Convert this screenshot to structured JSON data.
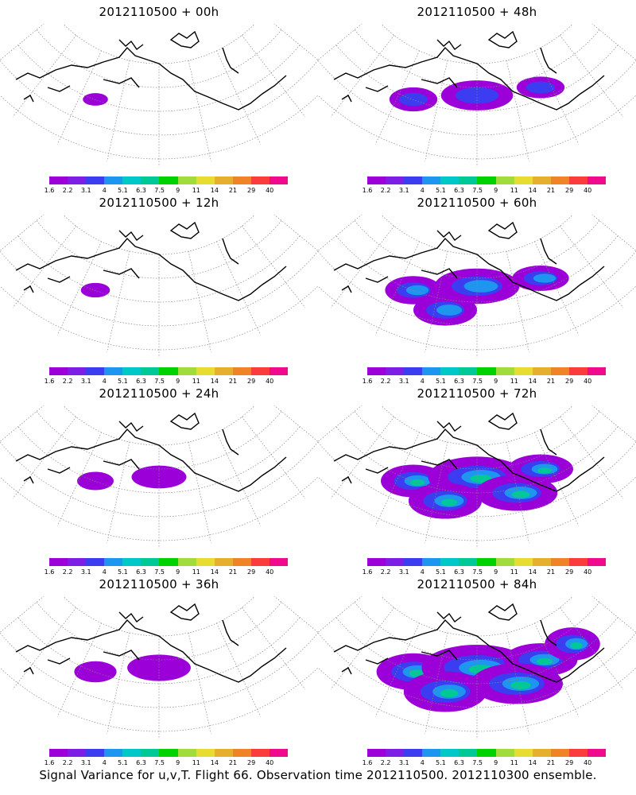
{
  "caption": "Signal Variance for u,v,T. Flight 66. Observation time 2012110500. 2012110300 ensemble.",
  "colorbar": {
    "colors": [
      "#9b00d8",
      "#7d1ee6",
      "#3c3cf0",
      "#1e96f0",
      "#00c8c8",
      "#00c896",
      "#00d200",
      "#a0dc3c",
      "#e6dc32",
      "#e6af2d",
      "#f08228",
      "#fa3c3c",
      "#f00a8c"
    ],
    "labels": [
      "1.6",
      "2.2",
      "3.1",
      "4",
      "5.1",
      "6.3",
      "7.5",
      "9",
      "11",
      "14",
      "21",
      "29",
      "40"
    ]
  },
  "panels": [
    {
      "title": "2012110500 + 00h",
      "fill_level": 0.05
    },
    {
      "title": "2012110500 + 48h",
      "fill_level": 0.45
    },
    {
      "title": "2012110500 + 12h",
      "fill_level": 0.12
    },
    {
      "title": "2012110500 + 60h",
      "fill_level": 0.6
    },
    {
      "title": "2012110500 + 24h",
      "fill_level": 0.25
    },
    {
      "title": "2012110500 + 72h",
      "fill_level": 0.75
    },
    {
      "title": "2012110500 + 36h",
      "fill_level": 0.35
    },
    {
      "title": "2012110500 + 84h",
      "fill_level": 0.9
    }
  ]
}
